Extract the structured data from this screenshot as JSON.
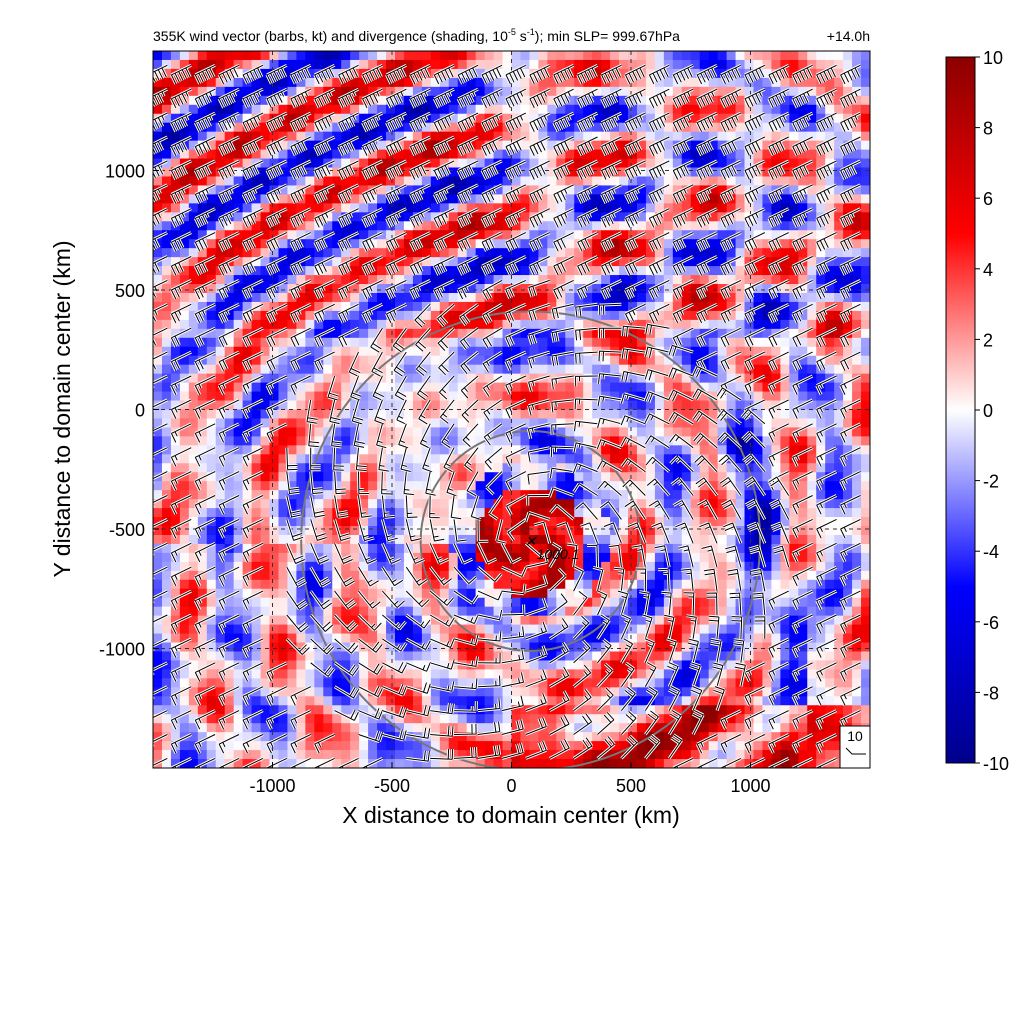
{
  "chart_data": {
    "type": "heatmap",
    "title_parts": {
      "pre": "355K wind vector (barbs, kt) and divergence (shading, 10",
      "sup1": "-5",
      "mid": " s",
      "sup2": "-1",
      "post": "); min SLP= 999.67hPa"
    },
    "time_label": "+14.0h",
    "xlabel": "X distance to domain center (km)",
    "ylabel": "Y distance to domain center (km)",
    "xlim": [
      -1500,
      1500
    ],
    "ylim": [
      -1500,
      1500
    ],
    "xticks": [
      -1000,
      -500,
      0,
      500,
      1000
    ],
    "yticks": [
      -1000,
      -500,
      0,
      500,
      1000
    ],
    "xtick_labels": [
      "-1000",
      "-500",
      "0",
      "500",
      "1000"
    ],
    "ytick_labels": [
      "-1000",
      "-500",
      "0",
      "500",
      "1000"
    ],
    "grid": true,
    "colorbar": {
      "min": -10,
      "max": 10,
      "ticks": [
        10,
        8,
        6,
        4,
        2,
        0,
        -2,
        -4,
        -6,
        -8,
        -10
      ],
      "labels": [
        "10",
        "8",
        "6",
        "4",
        "2",
        "0",
        "-2",
        "-4",
        "-6",
        "-8",
        "-10"
      ],
      "colors": [
        "#00008b",
        "#0000ff",
        "#ffffff",
        "#ff0000",
        "#8b0000"
      ]
    },
    "rings_km": [
      460,
      960
    ],
    "ring_center": [
      80,
      -550
    ],
    "center_marker": {
      "x": 80,
      "y": -550,
      "label": "1000.1"
    },
    "barb_scale_label": "10"
  }
}
